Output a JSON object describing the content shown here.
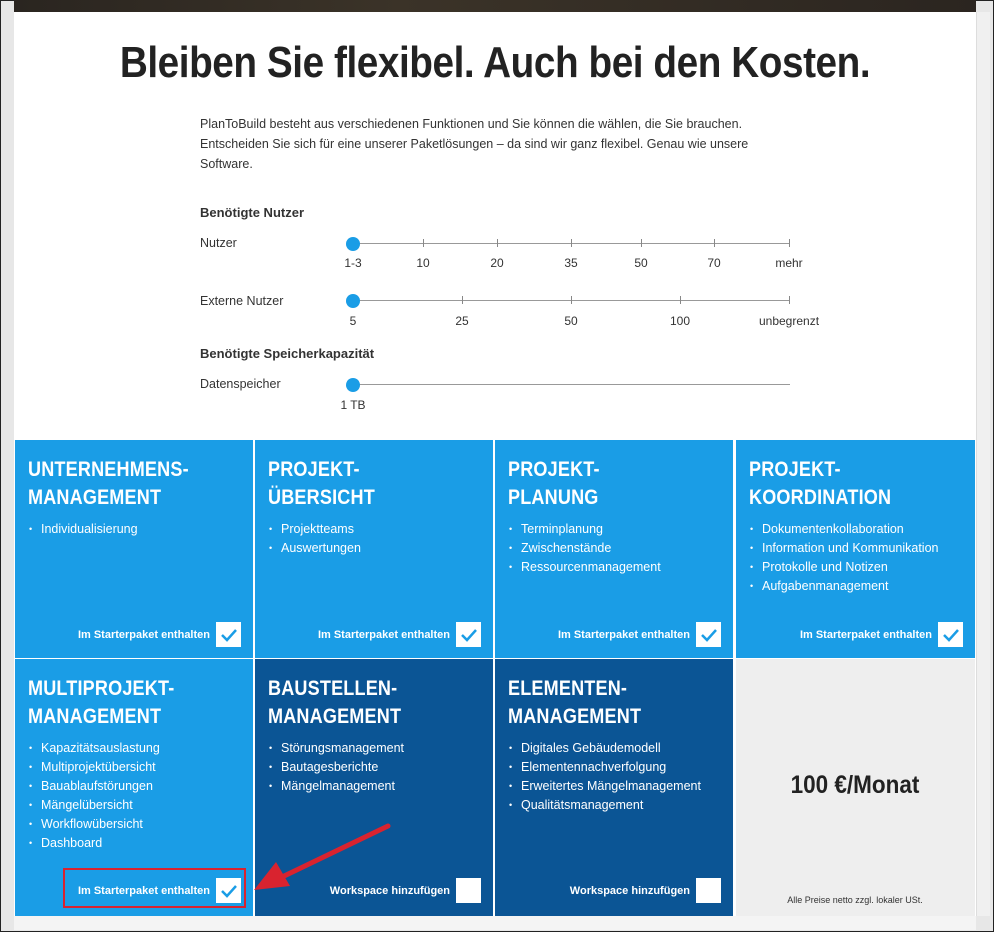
{
  "title": "Bleiben Sie flexibel. Auch bei den Kosten.",
  "intro": {
    "line1": "PlanToBuild besteht aus verschiedenen Funktionen und Sie können die wählen, die Sie brauchen.",
    "line2": "Entscheiden Sie sich für eine unserer Paketlösungen – da sind wir ganz flexibel. Genau wie unsere",
    "line3": "Software."
  },
  "users": {
    "heading": "Benötigte Nutzer",
    "nutzer_label": "Nutzer",
    "nutzer_ticks": [
      "1-3",
      "10",
      "20",
      "35",
      "50",
      "70",
      "mehr"
    ],
    "nutzer_selected": "1-3",
    "extern_label": "Externe Nutzer",
    "extern_ticks": [
      "5",
      "25",
      "50",
      "100",
      "unbegrenzt"
    ],
    "extern_selected": "5"
  },
  "storage": {
    "heading": "Benötigte Speicherkapazität",
    "label": "Datenspeicher",
    "ticks": [
      "1 TB"
    ],
    "selected": "1 TB"
  },
  "modules": [
    {
      "title_line1": "UNTERNEHMENS-",
      "title_line2": "MANAGEMENT",
      "items": [
        "Individualisierung"
      ],
      "footer": "Im Starterpaket enthalten",
      "checked": true
    },
    {
      "title_line1": "PROJEKT-",
      "title_line2": "ÜBERSICHT",
      "items": [
        "Projektteams",
        "Auswertungen"
      ],
      "footer": "Im Starterpaket enthalten",
      "checked": true
    },
    {
      "title_line1": "PROJEKT-",
      "title_line2": "PLANUNG",
      "items": [
        "Terminplanung",
        "Zwischenstände",
        "Ressourcenmanagement"
      ],
      "footer": "Im Starterpaket enthalten",
      "checked": true
    },
    {
      "title_line1": "PROJEKT-",
      "title_line2": "KOORDINATION",
      "items": [
        "Dokumentenkollaboration",
        "Information und Kommunikation",
        "Protokolle und Notizen",
        "Aufgabenmanagement"
      ],
      "footer": "Im Starterpaket enthalten",
      "checked": true
    },
    {
      "title_line1": "MULTIPROJEKT-",
      "title_line2": "MANAGEMENT",
      "items": [
        "Kapazitätsauslastung",
        "Multiprojektübersicht",
        "Bauablaufstörungen",
        "Mängelübersicht",
        "Workflowübersicht",
        "Dashboard"
      ],
      "footer": "Im Starterpaket enthalten",
      "checked": true
    },
    {
      "title_line1": "BAUSTELLEN-",
      "title_line2": "MANAGEMENT",
      "items": [
        "Störungsmanagement",
        "Bautagesberichte",
        "Mängelmanagement"
      ],
      "footer": "Workspace hinzufügen",
      "checked": false
    },
    {
      "title_line1": "ELEMENTEN-",
      "title_line2": "MANAGEMENT",
      "items": [
        "Digitales Gebäudemodell",
        "Elementennachverfolgung",
        "Erweitertes Mängelmanagement",
        "Qualitätsmanagement"
      ],
      "footer": "Workspace hinzufügen",
      "checked": false
    }
  ],
  "price": {
    "amount": "100 €/Monat",
    "note": "Alle Preise netto zzgl. lokaler USt."
  },
  "colors": {
    "light_blue": "#1a9de6",
    "dark_blue": "#0b5595",
    "highlight_red": "#d9232f"
  }
}
